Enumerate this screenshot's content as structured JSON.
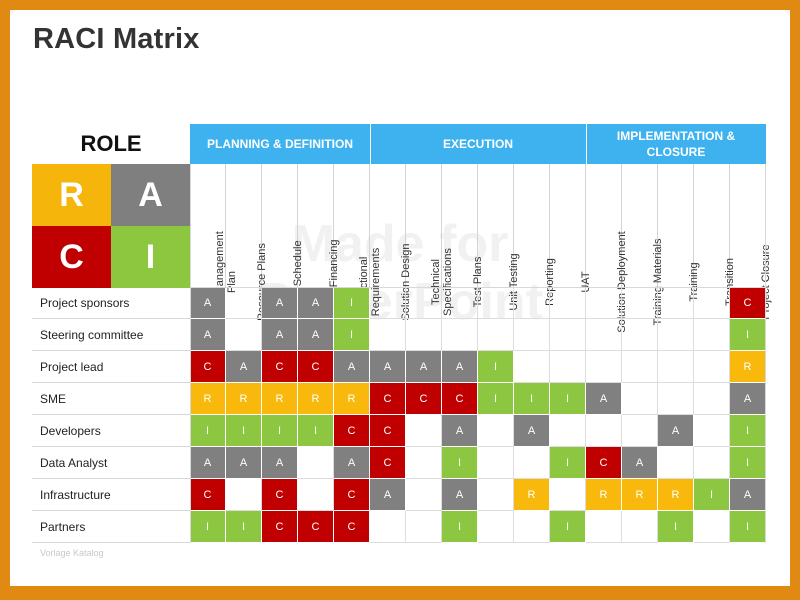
{
  "title": "RACI Matrix",
  "role_label": "ROLE",
  "raci_legend": [
    {
      "letter": "R",
      "color": "#F5B50A"
    },
    {
      "letter": "A",
      "color": "#7F7F7F"
    },
    {
      "letter": "C",
      "color": "#C00000"
    },
    {
      "letter": "I",
      "color": "#8DC63F"
    }
  ],
  "colors": {
    "R": "#F8B80C",
    "A": "#808080",
    "C": "#C00000",
    "I": "#8DC641",
    "header": "#3DB2EE",
    "frame": "#E08A14"
  },
  "groups": [
    {
      "label": "PLANNING & DEFINITION",
      "span": 5
    },
    {
      "label": "EXECUTION",
      "span": 6
    },
    {
      "label": "IMPLEMENTATION & CLOSURE",
      "span": 5
    }
  ],
  "columns": [
    "Project Management Plan",
    "Resource Plans",
    "Project Schedule",
    "Project Financing",
    "Functional Requirements",
    "Solution Design",
    "Technical Specifications",
    "Test Plans",
    "Unit Testing",
    "Reporting",
    "UAT",
    "Solution Deployment",
    "Training Materials",
    "Training",
    "Transition",
    "Project Closure"
  ],
  "rows": [
    {
      "role": "Project sponsors",
      "cells": [
        "A",
        "",
        "A",
        "A",
        "I",
        "",
        "",
        "",
        "",
        "",
        "",
        "",
        "",
        "",
        "",
        "C"
      ]
    },
    {
      "role": "Steering committee",
      "cells": [
        "A",
        "",
        "A",
        "A",
        "I",
        "",
        "",
        "",
        "",
        "",
        "",
        "",
        "",
        "",
        "",
        "I"
      ]
    },
    {
      "role": "Project lead",
      "cells": [
        "C",
        "A",
        "C",
        "C",
        "A",
        "A",
        "A",
        "A",
        "I",
        "",
        "",
        "",
        "",
        "",
        "",
        "R"
      ]
    },
    {
      "role": "SME",
      "cells": [
        "R",
        "R",
        "R",
        "R",
        "R",
        "C",
        "C",
        "C",
        "I",
        "I",
        "I",
        "A",
        "",
        "",
        "",
        "A"
      ]
    },
    {
      "role": "Developers",
      "cells": [
        "I",
        "I",
        "I",
        "I",
        "C",
        "C",
        "",
        "A",
        "",
        "A",
        "",
        "",
        "",
        "A",
        "",
        "I"
      ]
    },
    {
      "role": "Data Analyst",
      "cells": [
        "A",
        "A",
        "A",
        "",
        "A",
        "C",
        "",
        "I",
        "",
        "",
        "I",
        "C",
        "A",
        "",
        "",
        "I"
      ]
    },
    {
      "role": "Infrastructure",
      "cells": [
        "C",
        "",
        "C",
        "",
        "C",
        "A",
        "",
        "A",
        "",
        "R",
        "",
        "R",
        "R",
        "R",
        "I",
        "A"
      ]
    },
    {
      "role": "Partners",
      "cells": [
        "I",
        "I",
        "C",
        "C",
        "C",
        "",
        "",
        "I",
        "",
        "",
        "I",
        "",
        "",
        "I",
        "",
        "I"
      ]
    }
  ],
  "watermark": "Made for PowerPoint",
  "footer": "Vorlage Katalog"
}
